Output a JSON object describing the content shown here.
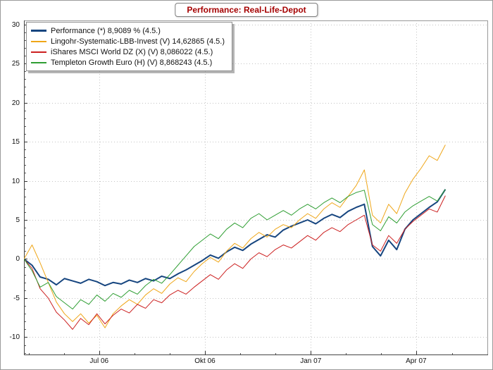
{
  "title": "Performance: Real-Life-Depot",
  "chart_data": {
    "type": "line",
    "title": "Performance: Real-Life-Depot",
    "grid": "dotted",
    "legend_position": "top-left",
    "ylim": [
      -12.3,
      30.5
    ],
    "xlim": [
      0,
      1
    ],
    "y_ticks": [
      30,
      25,
      20,
      15,
      10,
      5,
      0,
      -5,
      -10
    ],
    "y_minor_step": 1,
    "x_ticks": [
      {
        "label": "Jul 06",
        "pos": 0.162
      },
      {
        "label": "Okt 06",
        "pos": 0.39
      },
      {
        "label": "Jan 07",
        "pos": 0.618
      },
      {
        "label": "Apr 07",
        "pos": 0.845
      }
    ],
    "x_start": 0.0,
    "x_end": 0.908,
    "x_unit": "weeks from 4 May 2006 to 4 May 2007",
    "series": [
      {
        "name": "Performance (*) 8,9089 % (4.5.)",
        "color": "#16457f",
        "width": 2,
        "values": [
          0.0,
          -0.8,
          -2.3,
          -2.6,
          -3.3,
          -2.5,
          -2.8,
          -3.1,
          -2.6,
          -2.9,
          -3.4,
          -3.0,
          -3.2,
          -2.7,
          -3.0,
          -2.5,
          -2.8,
          -2.2,
          -2.5,
          -1.9,
          -1.4,
          -0.8,
          -0.2,
          0.5,
          0.1,
          0.9,
          1.5,
          1.1,
          1.9,
          2.5,
          3.1,
          2.8,
          3.7,
          4.2,
          4.6,
          5.0,
          4.5,
          5.2,
          5.7,
          5.3,
          6.1,
          6.6,
          7.0,
          1.6,
          0.4,
          2.4,
          1.2,
          3.8,
          5.0,
          5.8,
          6.6,
          7.3,
          8.9
        ]
      },
      {
        "name": "Lingohr-Systematic-LBB-Invest (V) 14,62865 (4.5.)",
        "color": "#efa618",
        "width": 1,
        "values": [
          0.0,
          1.8,
          -0.5,
          -3.0,
          -5.5,
          -7.0,
          -8.0,
          -7.0,
          -8.2,
          -7.2,
          -8.8,
          -7.0,
          -6.0,
          -5.2,
          -5.8,
          -4.6,
          -3.8,
          -4.4,
          -3.2,
          -2.4,
          -2.9,
          -1.6,
          -0.6,
          0.2,
          -0.4,
          1.0,
          2.0,
          1.4,
          2.6,
          3.4,
          2.8,
          3.8,
          4.4,
          4.0,
          5.0,
          5.8,
          5.2,
          6.4,
          7.2,
          6.6,
          8.0,
          9.4,
          11.4,
          5.6,
          4.6,
          7.0,
          5.8,
          8.4,
          10.2,
          11.6,
          13.2,
          12.6,
          14.6
        ]
      },
      {
        "name": "iShares MSCI World DZ (X) (V) 8,086022 (4.5.)",
        "color": "#cc2020",
        "width": 1,
        "values": [
          0.0,
          -1.2,
          -3.8,
          -5.0,
          -6.8,
          -7.8,
          -9.0,
          -7.6,
          -8.4,
          -7.0,
          -8.3,
          -7.2,
          -6.4,
          -6.9,
          -5.8,
          -6.3,
          -5.2,
          -5.6,
          -4.6,
          -4.0,
          -4.5,
          -3.6,
          -2.8,
          -2.0,
          -2.6,
          -1.4,
          -0.6,
          -1.2,
          0.0,
          0.8,
          0.3,
          1.2,
          1.8,
          1.4,
          2.2,
          3.0,
          2.4,
          3.4,
          4.0,
          3.5,
          4.4,
          5.0,
          5.6,
          1.8,
          1.0,
          3.0,
          2.0,
          3.8,
          4.8,
          5.6,
          6.4,
          6.0,
          8.1
        ]
      },
      {
        "name": "Templeton Growth Euro (H) (V) 8,868243 (4.5.)",
        "color": "#2f9e33",
        "width": 1,
        "values": [
          0.0,
          -1.5,
          -3.6,
          -3.0,
          -4.8,
          -5.6,
          -6.4,
          -5.2,
          -5.8,
          -4.6,
          -5.4,
          -4.4,
          -4.9,
          -4.0,
          -4.5,
          -3.4,
          -2.6,
          -3.1,
          -2.0,
          -0.8,
          0.4,
          1.6,
          2.4,
          3.2,
          2.6,
          3.8,
          4.6,
          4.0,
          5.2,
          5.8,
          5.0,
          5.6,
          6.2,
          5.6,
          6.4,
          7.0,
          6.4,
          7.2,
          7.8,
          7.2,
          8.0,
          8.5,
          8.8,
          4.4,
          3.6,
          5.4,
          4.6,
          6.0,
          6.8,
          7.4,
          8.0,
          7.4,
          8.9
        ]
      }
    ]
  }
}
